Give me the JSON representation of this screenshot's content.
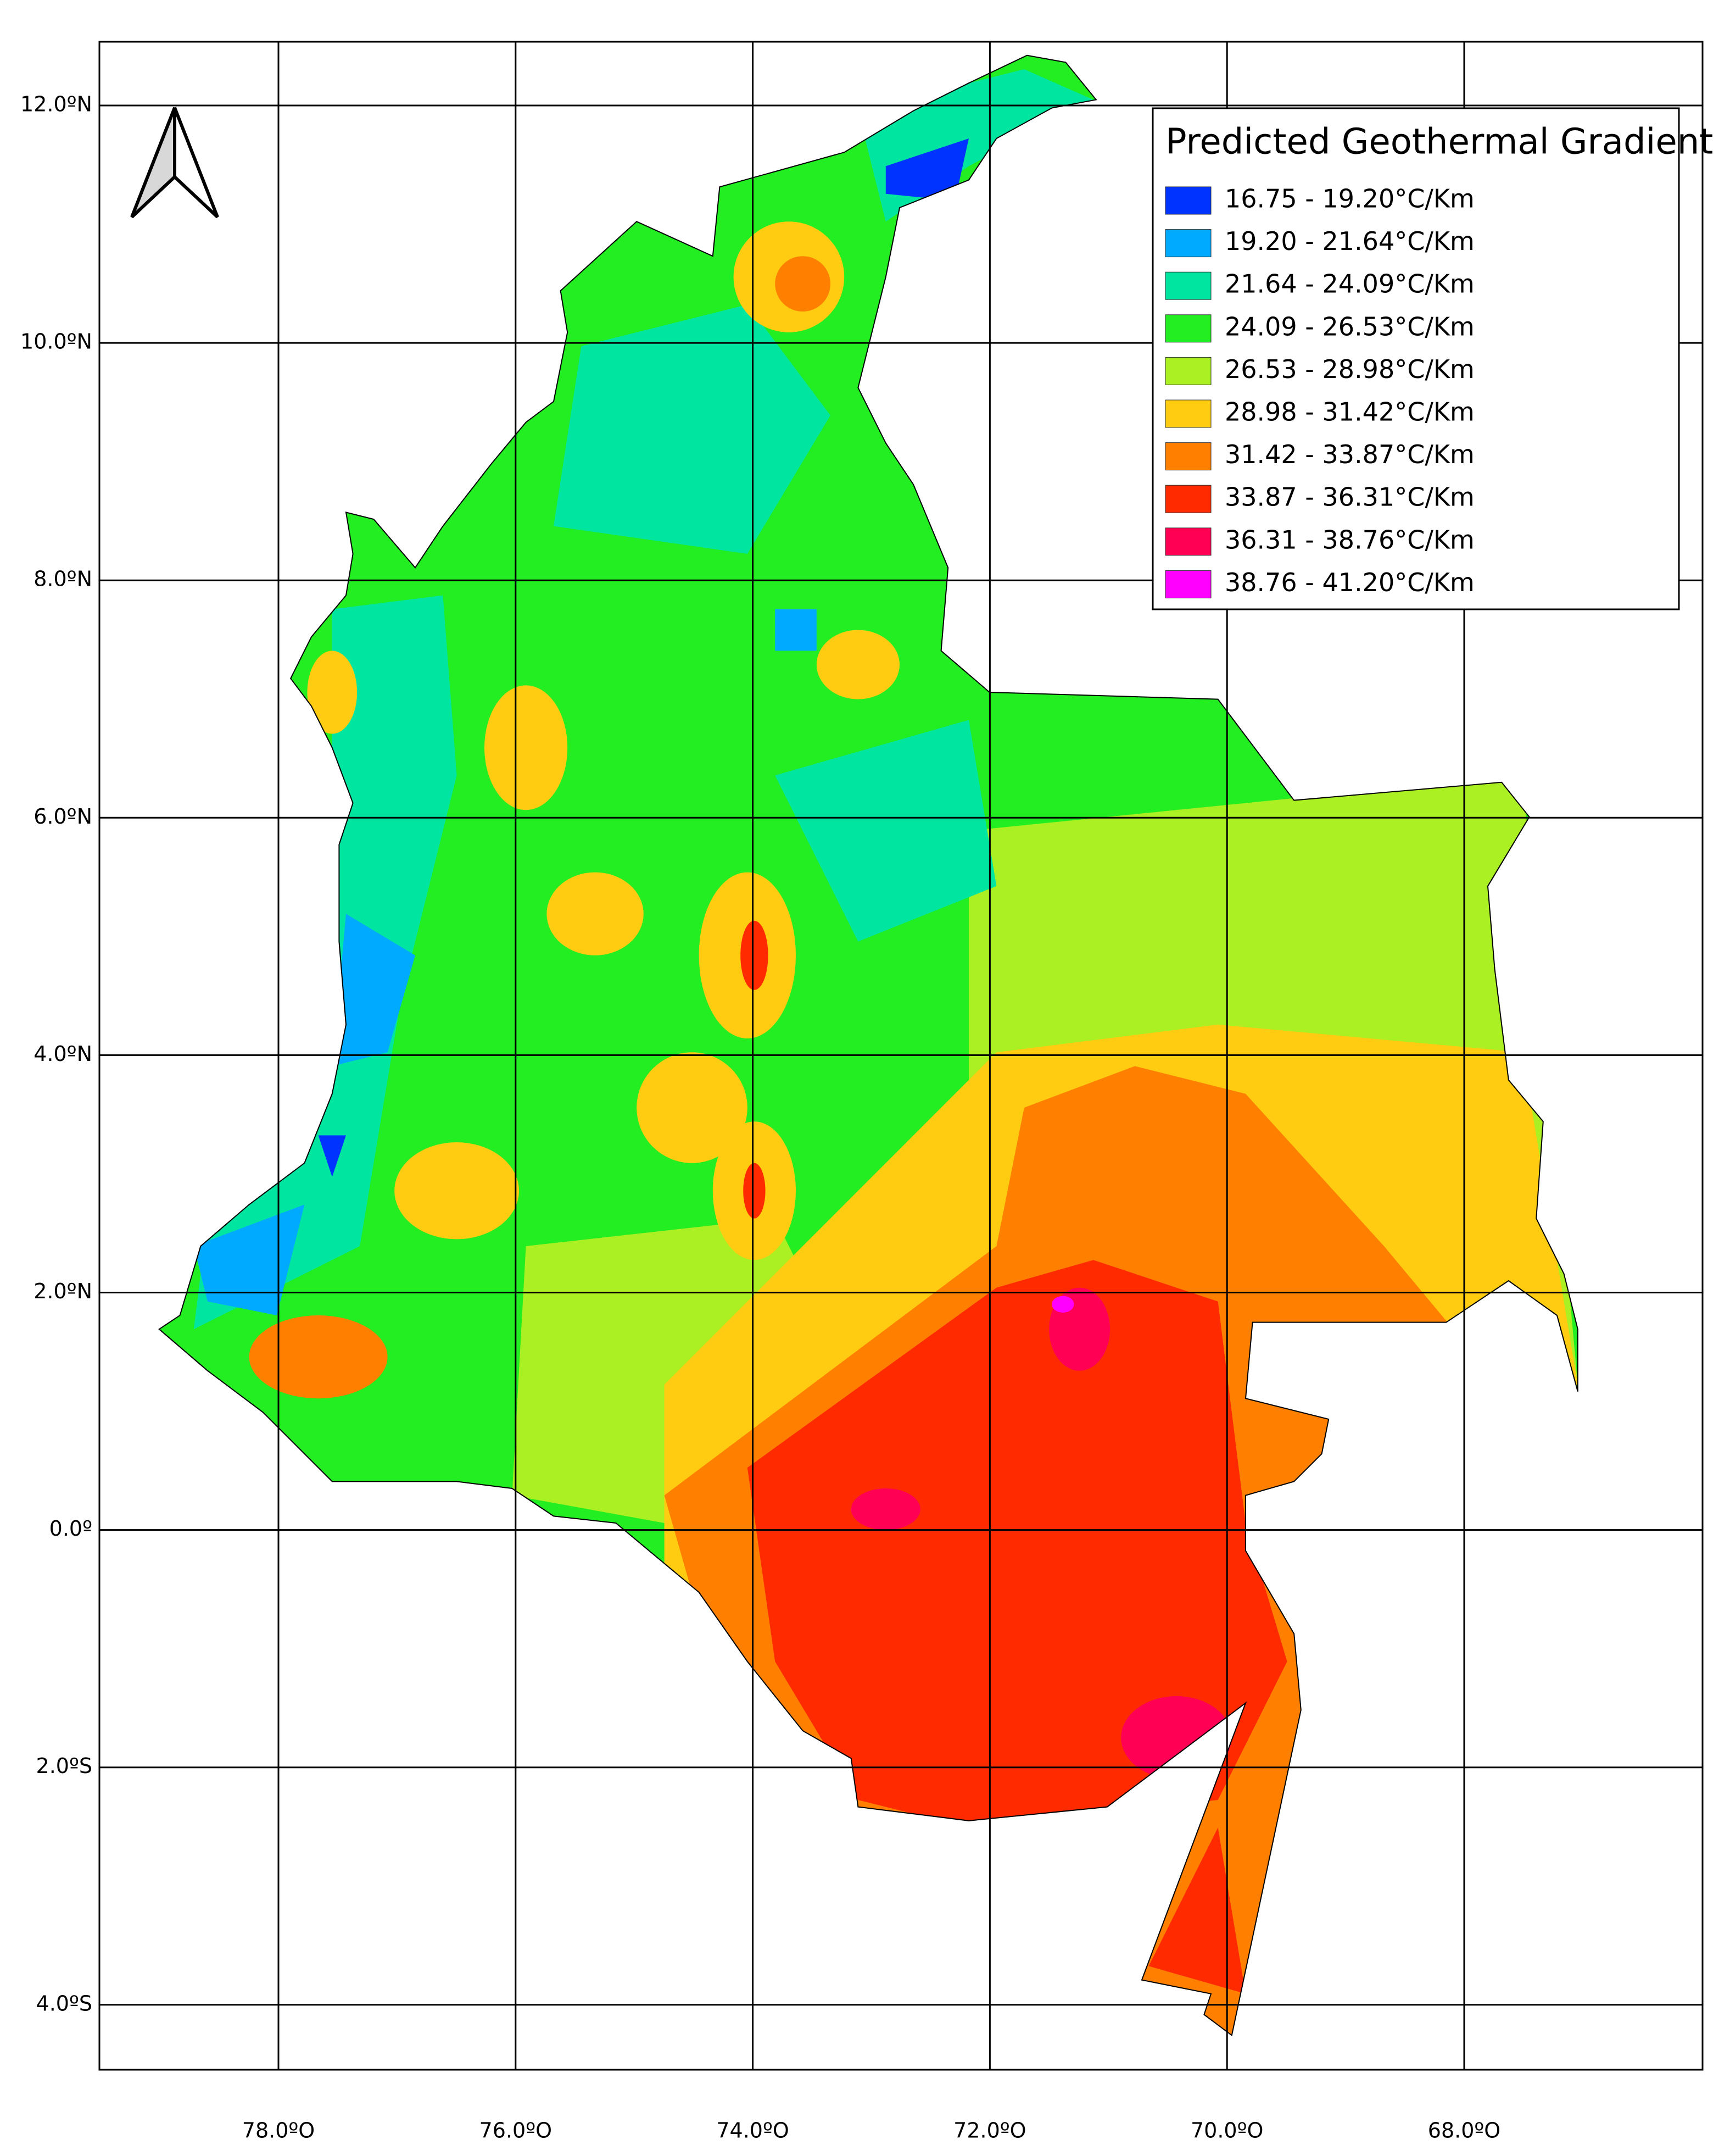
{
  "map": {
    "legend": {
      "title": "Predicted Geothermal Gradient",
      "entries": [
        {
          "label": "16.75 - 19.20°C/Km",
          "color": "#0033ff"
        },
        {
          "label": "19.20 - 21.64°C/Km",
          "color": "#00aaff"
        },
        {
          "label": "21.64 - 24.09°C/Km",
          "color": "#00e6a0"
        },
        {
          "label": "24.09 - 26.53°C/Km",
          "color": "#22ee22"
        },
        {
          "label": "26.53 - 28.98°C/Km",
          "color": "#aaf022"
        },
        {
          "label": "28.98 - 31.42°C/Km",
          "color": "#ffcc11"
        },
        {
          "label": "31.42 - 33.87°C/Km",
          "color": "#ff8000"
        },
        {
          "label": "33.87 - 36.31°C/Km",
          "color": "#ff2a00"
        },
        {
          "label": "36.31 - 38.76°C/Km",
          "color": "#ff0055"
        },
        {
          "label": "38.76 - 41.20°C/Km",
          "color": "#ff00ff"
        }
      ]
    },
    "lat_labels": [
      "12.0ºN",
      "10.0ºN",
      "8.0ºN",
      "6.0ºN",
      "4.0ºN",
      "2.0ºN",
      "0.0º",
      "2.0ºS",
      "4.0ºS"
    ],
    "lon_labels": [
      "78.0ºO",
      "76.0ºO",
      "74.0ºO",
      "72.0ºO",
      "70.0ºO",
      "68.0ºO"
    ]
  }
}
